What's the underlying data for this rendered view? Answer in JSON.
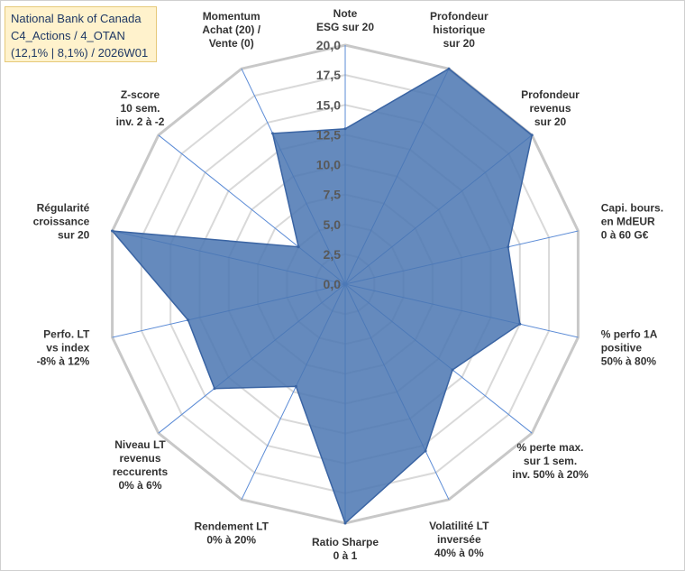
{
  "title_box": {
    "line1": "National Bank of Canada",
    "line2": "C4_Actions / 4_OTAN",
    "line3": "(12,1% | 8,1%) / 2026W01"
  },
  "colors": {
    "fill": "#4a76b2",
    "stroke": "#3a64a3",
    "spoke": "#5b8bd6",
    "grid": "#d9d9d9",
    "outer_grid": "#c8c8c8",
    "box_bg": "#fff2cc",
    "box_text": "#1f3864"
  },
  "chart_data": {
    "type": "radar",
    "title": "National Bank of Canada — C4_Actions / 4_OTAN",
    "rmin": 0,
    "rmax": 20,
    "tick_step": 2.5,
    "tick_labels": [
      "0,0",
      "2,5",
      "5,0",
      "7,5",
      "10,0",
      "12,5",
      "15,0",
      "17,5",
      "20,0"
    ],
    "axes": [
      {
        "label": [
          "Note",
          "ESG sur 20"
        ],
        "value": 13.0
      },
      {
        "label": [
          "Profondeur",
          "historique",
          "sur 20"
        ],
        "value": 20.0
      },
      {
        "label": [
          "Profondeur",
          "revenus",
          "sur 20"
        ],
        "value": 20.0
      },
      {
        "label": [
          "Capi. bours.",
          "en MdEUR",
          "0 à 60 G€"
        ],
        "value": 14.0
      },
      {
        "label": [
          "% perfo 1A",
          "positive",
          "50% à 80%"
        ],
        "value": 15.0
      },
      {
        "label": [
          "% perte max.",
          "sur 1 sem.",
          "inv. 50% à 20%"
        ],
        "value": 11.5
      },
      {
        "label": [
          "Volatilité LT",
          "inversée",
          "40% à 0%"
        ],
        "value": 15.5
      },
      {
        "label": [
          "Ratio Sharpe",
          "0 à 1"
        ],
        "value": 20.0
      },
      {
        "label": [
          "Rendement LT",
          "0% à 20%"
        ],
        "value": 9.5
      },
      {
        "label": [
          "Niveau LT",
          "revenus",
          "reccurents",
          "0% à 6%"
        ],
        "value": 14.0
      },
      {
        "label": [
          "Perfo. LT",
          "vs index",
          "-8% à 12%"
        ],
        "value": 13.5
      },
      {
        "label": [
          "Régularité",
          "croissance",
          "sur 20"
        ],
        "value": 20.0
      },
      {
        "label": [
          "Z-score",
          "10 sem.",
          "inv. 2 à -2"
        ],
        "value": 5.0
      },
      {
        "label": [
          "Momentum",
          "Achat (20) /",
          "Vente (0)"
        ],
        "value": 14.0
      }
    ]
  }
}
